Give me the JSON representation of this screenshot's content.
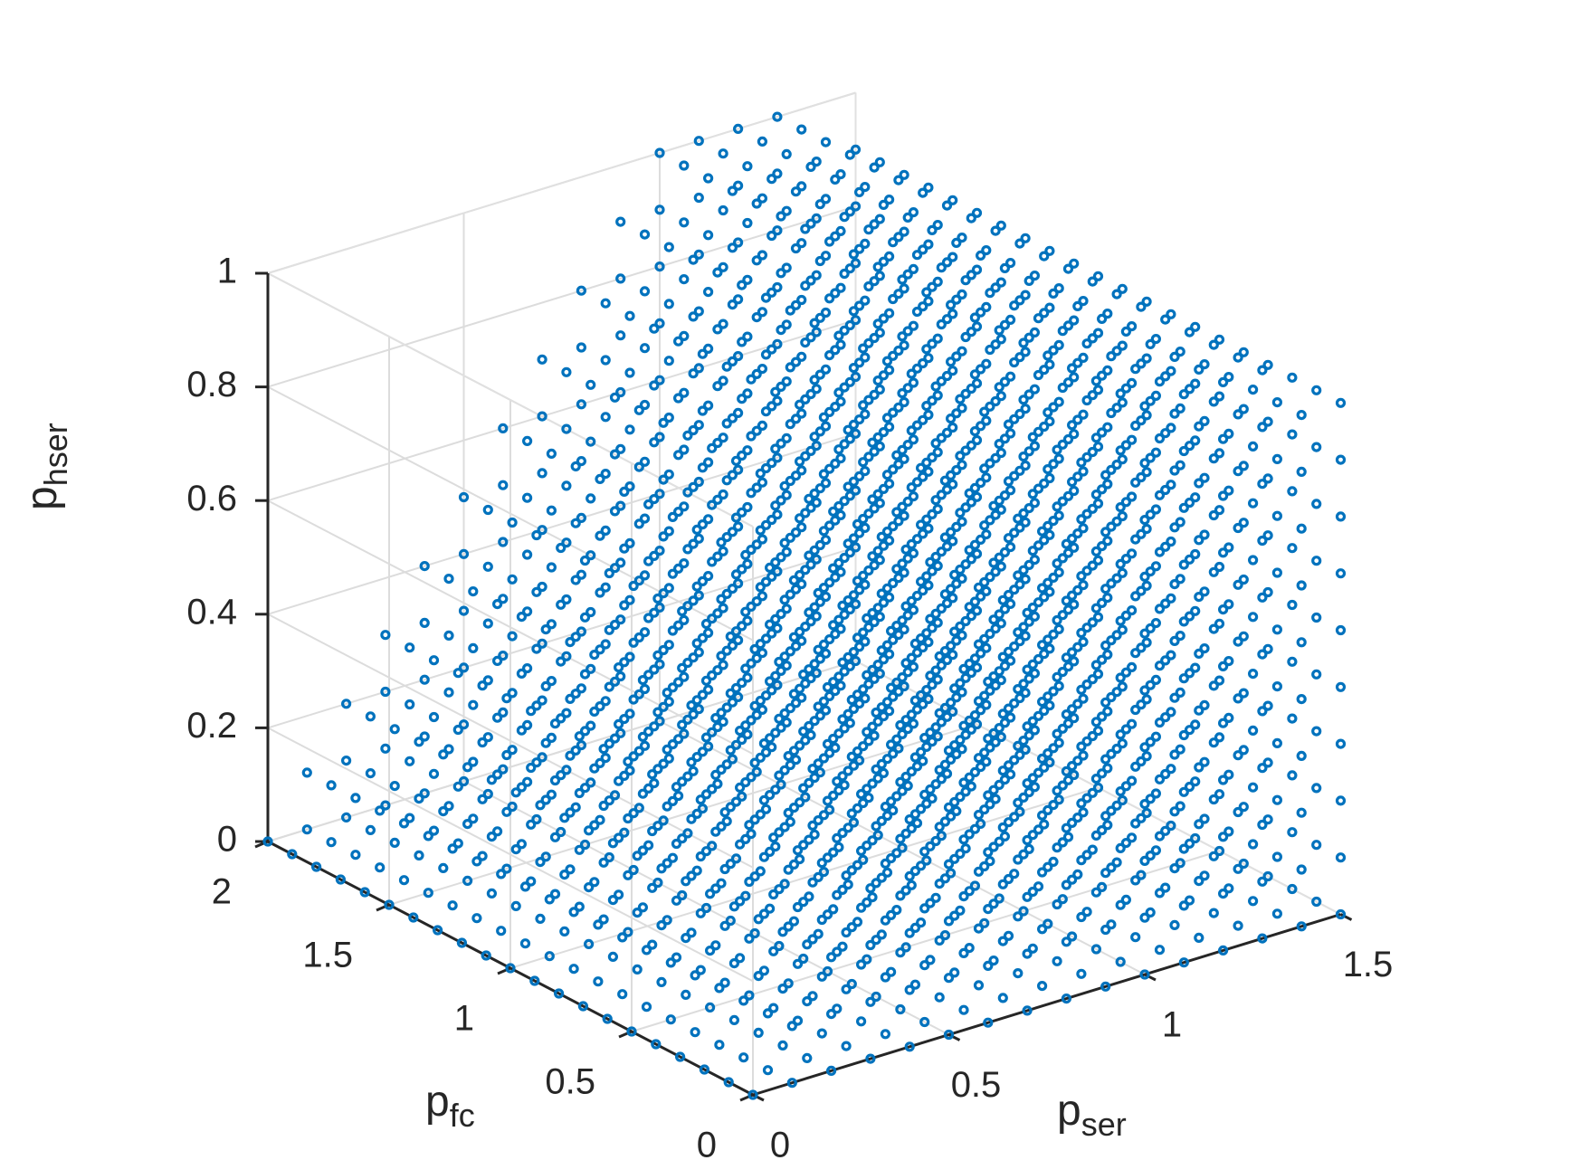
{
  "chart_data": {
    "type": "scatter",
    "title": "",
    "axes": {
      "x": {
        "label_base": "p",
        "label_sub": "ser",
        "lim": [
          0,
          1.5
        ],
        "ticks": [
          0,
          0.5,
          1,
          1.5
        ],
        "tick_labels": [
          "0",
          "0.5",
          "1",
          "1.5"
        ]
      },
      "y": {
        "label_base": "p",
        "label_sub": "fc",
        "lim": [
          0,
          2
        ],
        "ticks": [
          0,
          0.5,
          1,
          1.5,
          2
        ],
        "tick_labels": [
          "0",
          "0.5",
          "1",
          "1.5",
          "2"
        ]
      },
      "z": {
        "label_base": "p",
        "label_sub": "hser",
        "lim": [
          0,
          1
        ],
        "ticks": [
          0,
          0.2,
          0.4,
          0.6,
          0.8,
          1
        ],
        "tick_labels": [
          "0",
          "0.2",
          "0.4",
          "0.6",
          "0.8",
          "1"
        ]
      }
    },
    "grid": true,
    "marker": "circle",
    "marker_color": "#0072BD",
    "points": {
      "description": "regular 3-D grid of points with step 0.1 on each axis, bounded by constraints",
      "p_ser": {
        "start": 0,
        "end": 1.5,
        "step": 0.1
      },
      "p_fc": {
        "start": 0,
        "end": 2,
        "step": 0.1
      },
      "p_hser": {
        "start": 0,
        "end": 1,
        "step": 0.1
      },
      "constraints": [
        "p_hser <= p_ser",
        "p_hser + 0.6*p_ser <= 1.8"
      ]
    }
  }
}
